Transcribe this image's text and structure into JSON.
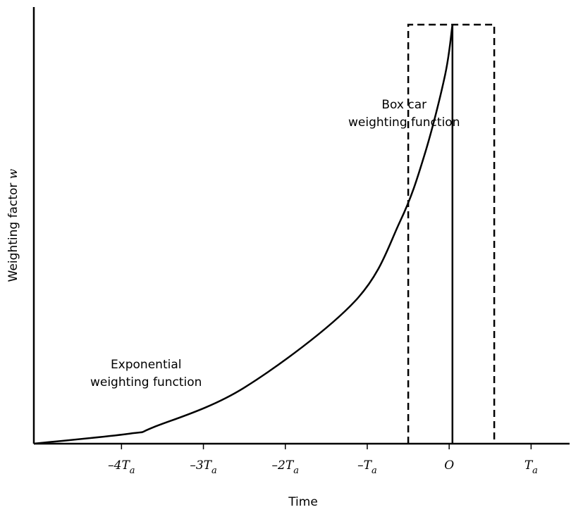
{
  "chart_data": {
    "type": "line",
    "title": "",
    "xlabel": "Time",
    "ylabel": "Weighting factor",
    "ylabel_symbol": "w",
    "x_ticks": [
      {
        "value": -4,
        "base": "–4T",
        "sub": "a"
      },
      {
        "value": -3,
        "base": "–3T",
        "sub": "a"
      },
      {
        "value": -2,
        "base": "–2T",
        "sub": "a"
      },
      {
        "value": -1,
        "base": "–T",
        "sub": "a"
      },
      {
        "value": 0,
        "base": "O",
        "sub": ""
      },
      {
        "value": 1,
        "base": "T",
        "sub": "a"
      }
    ],
    "xlim": [
      -5.07,
      1.47
    ],
    "ylim": [
      0,
      1.0
    ],
    "grid": false,
    "series": [
      {
        "style": "solid",
        "x": [
          -5.07,
          -3.9,
          -3.6,
          -2.5,
          -1.15,
          -0.6,
          -0.3,
          -0.05,
          0.04
        ],
        "y": [
          0.0,
          0.024,
          0.04,
          0.134,
          0.34,
          0.53,
          0.69,
          0.88,
          1.0
        ]
      },
      {
        "style": "dashed",
        "x": [
          -0.5,
          -0.5,
          0.55,
          0.55
        ],
        "y": [
          0,
          1.0,
          1.0,
          0
        ]
      }
    ],
    "vertical_line": {
      "x": 0.04,
      "y": [
        0,
        1.0
      ]
    },
    "annotations": [
      {
        "lines": [
          "Box car",
          "weighting function"
        ],
        "x": -0.55,
        "y": 0.8
      },
      {
        "lines": [
          "Exponential",
          "weighting function"
        ],
        "x": -3.7,
        "y": 0.18
      }
    ]
  }
}
